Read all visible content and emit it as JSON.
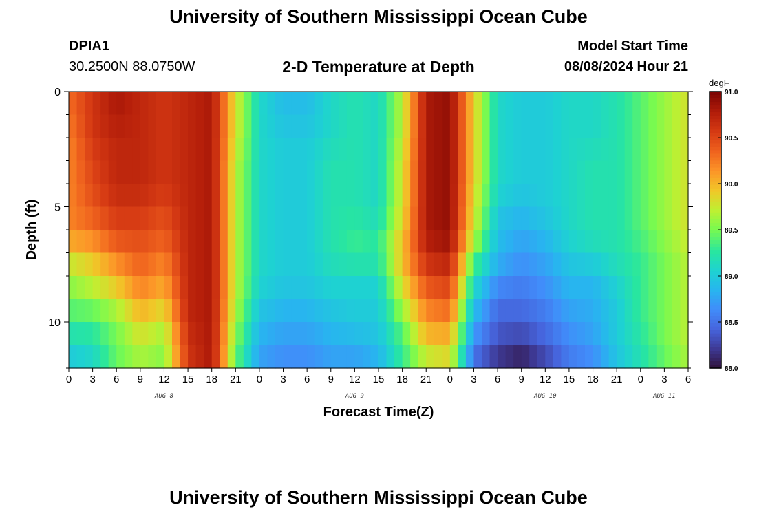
{
  "page": {
    "title": "University of Southern Mississippi Ocean Cube",
    "footer_title": "University of Southern Mississippi Ocean Cube",
    "station_name": "DPIA1",
    "station_coords": "30.2500N  88.0750W",
    "subtitle": "2-D Temperature at Depth",
    "model_start_label": "Model Start Time",
    "model_start_value": "08/08/2024 Hour 21"
  },
  "chart_data": {
    "type": "heatmap",
    "title": "2-D Temperature at Depth",
    "xlabel": "Forecast Time(Z)",
    "ylabel": "Depth (ft)",
    "units": "degF",
    "x_hours": [
      0,
      3,
      6,
      9,
      12,
      15,
      18,
      21,
      24,
      27,
      30,
      33,
      36,
      39,
      42,
      45,
      48,
      51,
      54,
      57,
      60,
      63,
      66,
      69,
      72,
      75,
      78
    ],
    "x_tick_labels": [
      "0",
      "3",
      "6",
      "9",
      "12",
      "15",
      "18",
      "21",
      "0",
      "3",
      "6",
      "9",
      "12",
      "15",
      "18",
      "21",
      "0",
      "3",
      "6",
      "9",
      "12",
      "15",
      "18",
      "21",
      "0",
      "3",
      "6"
    ],
    "date_labels": [
      {
        "label": "AUG 8",
        "hour": 12
      },
      {
        "label": "AUG 9",
        "hour": 36
      },
      {
        "label": "AUG 10",
        "hour": 60
      },
      {
        "label": "AUG 11",
        "hour": 75
      }
    ],
    "depths": [
      0,
      1,
      2,
      3,
      4,
      5,
      6,
      7,
      8,
      9,
      10,
      11,
      12
    ],
    "y_ticks": [
      0,
      5,
      10
    ],
    "ylim": [
      0,
      12
    ],
    "xlim": [
      0,
      78
    ],
    "colorbar": {
      "min": 88.0,
      "max": 91.0,
      "ticks": [
        "91.0",
        "90.5",
        "90.0",
        "89.5",
        "89.0",
        "88.5",
        "88.0"
      ]
    },
    "temperature_degF": [
      [
        90.3,
        90.6,
        90.8,
        90.7,
        90.6,
        90.7,
        90.8,
        89.8,
        89.1,
        88.9,
        88.9,
        89.1,
        89.2,
        89.1,
        89.7,
        90.8,
        90.9,
        89.9,
        89.1,
        89.0,
        89.0,
        89.1,
        89.1,
        89.2,
        89.4,
        89.6,
        89.8
      ],
      [
        90.3,
        90.6,
        90.8,
        90.7,
        90.6,
        90.7,
        90.8,
        89.8,
        89.1,
        88.9,
        88.9,
        89.1,
        89.2,
        89.1,
        89.7,
        90.8,
        90.9,
        89.9,
        89.1,
        89.0,
        89.0,
        89.1,
        89.1,
        89.2,
        89.4,
        89.6,
        89.8
      ],
      [
        90.2,
        90.6,
        90.7,
        90.7,
        90.6,
        90.7,
        90.8,
        89.8,
        89.1,
        89.0,
        89.0,
        89.1,
        89.2,
        89.1,
        89.7,
        90.8,
        90.9,
        89.9,
        89.1,
        89.0,
        89.0,
        89.1,
        89.1,
        89.2,
        89.4,
        89.6,
        89.8
      ],
      [
        90.2,
        90.5,
        90.7,
        90.7,
        90.6,
        90.7,
        90.8,
        89.7,
        89.1,
        89.0,
        89.0,
        89.2,
        89.2,
        89.1,
        89.8,
        90.8,
        90.9,
        89.9,
        89.1,
        89.0,
        89.0,
        89.1,
        89.2,
        89.2,
        89.4,
        89.6,
        89.8
      ],
      [
        90.2,
        90.5,
        90.7,
        90.7,
        90.6,
        90.7,
        90.8,
        89.7,
        89.1,
        89.0,
        89.0,
        89.2,
        89.2,
        89.1,
        89.8,
        90.8,
        90.9,
        89.9,
        89.1,
        89.0,
        89.0,
        89.1,
        89.2,
        89.2,
        89.4,
        89.6,
        89.8
      ],
      [
        90.2,
        90.4,
        90.6,
        90.6,
        90.5,
        90.7,
        90.8,
        89.7,
        89.1,
        89.0,
        89.0,
        89.2,
        89.2,
        89.1,
        89.8,
        90.8,
        90.9,
        89.8,
        89.0,
        88.9,
        89.0,
        89.1,
        89.2,
        89.2,
        89.4,
        89.6,
        89.8
      ],
      [
        90.2,
        90.3,
        90.5,
        90.5,
        90.4,
        90.7,
        90.8,
        89.7,
        89.1,
        89.0,
        89.0,
        89.2,
        89.3,
        89.2,
        89.9,
        90.8,
        90.9,
        89.8,
        88.9,
        88.8,
        88.9,
        89.1,
        89.2,
        89.2,
        89.4,
        89.6,
        89.8
      ],
      [
        89.9,
        90.0,
        90.3,
        90.4,
        90.3,
        90.7,
        90.8,
        89.7,
        89.1,
        89.0,
        89.0,
        89.2,
        89.3,
        89.3,
        90.0,
        90.7,
        90.8,
        89.5,
        88.9,
        88.7,
        88.8,
        89.0,
        89.1,
        89.2,
        89.3,
        89.5,
        89.7
      ],
      [
        89.6,
        89.8,
        90.0,
        90.3,
        90.1,
        90.7,
        90.8,
        89.7,
        89.1,
        89.0,
        89.0,
        89.1,
        89.1,
        89.1,
        89.9,
        90.5,
        90.6,
        89.2,
        88.7,
        88.6,
        88.7,
        88.9,
        88.9,
        89.1,
        89.3,
        89.5,
        89.7
      ],
      [
        89.5,
        89.6,
        89.8,
        90.1,
        90.0,
        90.7,
        90.8,
        89.7,
        89.0,
        88.9,
        88.9,
        89.0,
        89.0,
        89.0,
        89.7,
        90.3,
        90.4,
        89.0,
        88.5,
        88.5,
        88.6,
        88.8,
        88.8,
        89.0,
        89.3,
        89.5,
        89.7
      ],
      [
        89.3,
        89.3,
        89.5,
        89.9,
        89.7,
        90.7,
        90.8,
        89.6,
        88.9,
        88.8,
        88.8,
        88.9,
        89.0,
        89.0,
        89.5,
        90.1,
        90.2,
        88.8,
        88.4,
        88.4,
        88.5,
        88.7,
        88.8,
        89.0,
        89.3,
        89.5,
        89.7
      ],
      [
        89.1,
        89.2,
        89.5,
        89.7,
        89.6,
        90.6,
        90.8,
        89.5,
        88.8,
        88.7,
        88.7,
        88.8,
        88.8,
        88.9,
        89.3,
        89.9,
        89.9,
        88.6,
        88.3,
        88.2,
        88.4,
        88.6,
        88.7,
        89.0,
        89.2,
        89.5,
        89.7
      ],
      [
        88.9,
        89.0,
        89.4,
        89.6,
        89.5,
        90.6,
        90.8,
        89.4,
        88.7,
        88.6,
        88.6,
        88.7,
        88.7,
        88.8,
        89.3,
        89.6,
        89.8,
        88.4,
        88.1,
        88.0,
        88.2,
        88.5,
        88.6,
        88.9,
        89.2,
        89.4,
        89.6
      ]
    ]
  }
}
